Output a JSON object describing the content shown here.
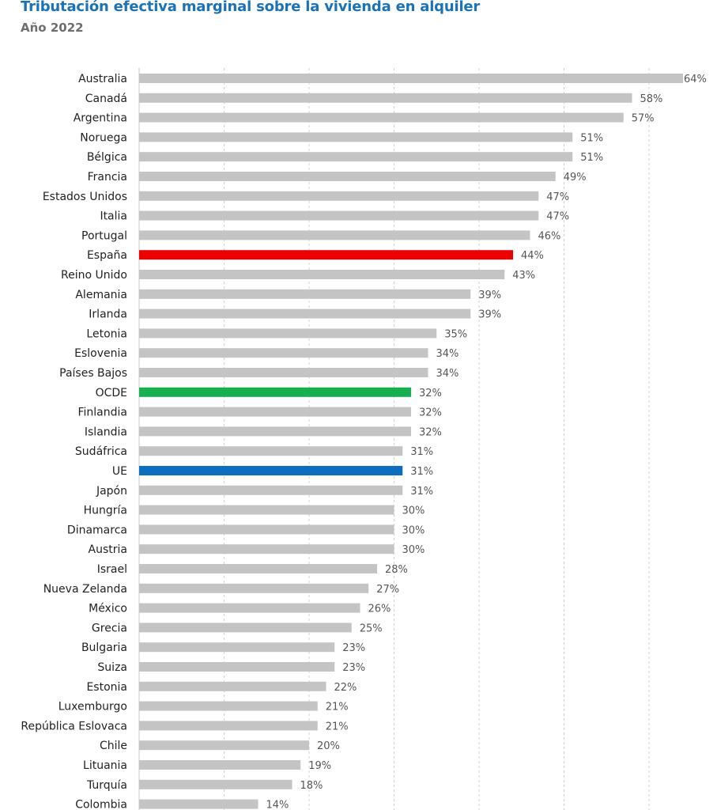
{
  "chart_data": {
    "type": "bar",
    "orientation": "horizontal",
    "title": "Tributación efectiva marginal sobre la vivienda en alquiler",
    "subtitle": "Año 2022",
    "categories": [
      "Australia",
      "Canadá",
      "Argentina",
      "Noruega",
      "Bélgica",
      "Francia",
      "Estados Unidos",
      "Italia",
      "Portugal",
      "España",
      "Reino Unido",
      "Alemania",
      "Irlanda",
      "Letonia",
      "Eslovenia",
      "Países Bajos",
      "OCDE",
      "Finlandia",
      "Islandia",
      "Sudáfrica",
      "UE",
      "Japón",
      "Hungría",
      "Dinamarca",
      "Austria",
      "Israel",
      "Nueva Zelanda",
      "México",
      "Grecia",
      "Bulgaria",
      "Suiza",
      "Estonia",
      "Luxemburgo",
      "República Eslovaca",
      "Chile",
      "Lituania",
      "Turquía",
      "Colombia"
    ],
    "values": [
      64,
      58,
      57,
      51,
      51,
      49,
      47,
      47,
      46,
      44,
      43,
      39,
      39,
      35,
      34,
      34,
      32,
      32,
      32,
      31,
      31,
      31,
      30,
      30,
      30,
      28,
      27,
      26,
      25,
      23,
      23,
      22,
      21,
      21,
      20,
      19,
      18,
      14
    ],
    "value_labels": [
      "64%",
      "58%",
      "57%",
      "51%",
      "51%",
      "49%",
      "47%",
      "47%",
      "46%",
      "44%",
      "43%",
      "39%",
      "39%",
      "35%",
      "34%",
      "34%",
      "32%",
      "32%",
      "32%",
      "31%",
      "31%",
      "31%",
      "30%",
      "30%",
      "30%",
      "28%",
      "27%",
      "26%",
      "25%",
      "23%",
      "23%",
      "22%",
      "21%",
      "21%",
      "20%",
      "19%",
      "18%",
      "14%"
    ],
    "xlim": [
      0,
      65
    ],
    "grid": true,
    "colors": {
      "default": "#c4c4c4",
      "España": "#ee0000",
      "OCDE": "#16b04f",
      "UE": "#0a6fc2",
      "grid": "#d0d0d0",
      "title": "#1a73b8",
      "subtitle": "#6e6e6e"
    }
  }
}
